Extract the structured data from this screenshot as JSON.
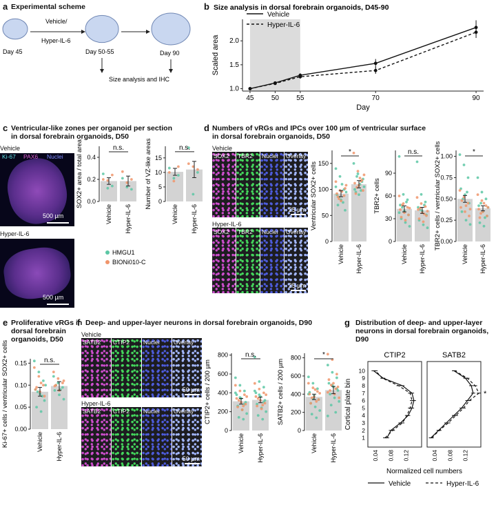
{
  "panel_a": {
    "letter": "a",
    "title": "Experimental scheme",
    "days": [
      "Day 45",
      "Day 50-55",
      "Day 90"
    ],
    "treatment": [
      "Vehicle/",
      "Hyper-IL-6"
    ],
    "analysis": "Size analysis and IHC",
    "colors": {
      "organoid": "#c9d7f0",
      "organoid_edge": "#6f86b3"
    }
  },
  "panel_b": {
    "letter": "b",
    "title": "Size analysis in dorsal forebrain organoids, D45-90"
  },
  "panel_c": {
    "letter": "c",
    "title_lines": [
      "Ventricular-like zones per organoid per section",
      "in dorsal forebrain organoids, D50"
    ],
    "image_labels": {
      "vehicle": "Vehicle",
      "hyper": "Hyper-IL-6",
      "stains": [
        "Ki-67",
        "PAX6",
        "Nuclei"
      ],
      "scale": "500 µm"
    },
    "legend": [
      "HMGU1",
      "BIONi010-C"
    ]
  },
  "panel_d": {
    "letter": "d",
    "title_lines": [
      "Numbers of vRGs and IPCs over 100 µm of ventricular surface",
      "in dorsal forebrain organoids, D50"
    ],
    "image_labels": {
      "vehicle": "Vehicle",
      "hyper": "Hyper-IL-6",
      "channels": [
        "SOX2",
        "TBR2",
        "Nuclei",
        "Overlay"
      ],
      "scale": "25 µm"
    }
  },
  "panel_e": {
    "letter": "e",
    "title_lines": [
      "Proliferative vRGs in",
      "dorsal forebrain",
      "organoids, D50"
    ]
  },
  "panel_f": {
    "letter": "f",
    "title": "Deep- and upper-layer neurons in dorsal forebrain organoids, D90",
    "image_labels": {
      "vehicle": "Vehicle",
      "hyper": "Hyper-IL-6",
      "channels": [
        "SATB2",
        "CTIP2",
        "Nuclei",
        "Overlay"
      ],
      "scale": "50 µm"
    }
  },
  "panel_g": {
    "letter": "g",
    "title_lines": [
      "Distribution of deep- and upper-layer",
      "neurons in dorsal forebrain organoids, D90"
    ]
  },
  "colors": {
    "HMGU1": "#5cc7a5",
    "BIONi010-C": "#f0956b",
    "bar": "#d3d3d3"
  },
  "chart_data": [
    {
      "id": "b",
      "type": "line",
      "title": "Size analysis in dorsal forebrain organoids, D45-90",
      "xlabel": "Day",
      "ylabel": "Scaled area",
      "x": [
        45,
        50,
        55,
        70,
        90
      ],
      "xticks": [
        "45",
        "50",
        "55",
        "70",
        "90"
      ],
      "yticks": [
        "1.0",
        "1.5",
        "2.0"
      ],
      "ylim": [
        0.95,
        2.45
      ],
      "shaded_x": [
        45,
        55
      ],
      "legend_position": "top-left",
      "series": [
        {
          "name": "Vehicle",
          "line": "solid",
          "values": [
            1.0,
            1.12,
            1.28,
            1.53,
            2.28
          ],
          "err": [
            0.02,
            0.03,
            0.04,
            0.09,
            0.15
          ]
        },
        {
          "name": "Hyper-IL-6",
          "line": "dashed",
          "values": [
            1.0,
            1.11,
            1.25,
            1.38,
            2.18
          ],
          "err": [
            0.02,
            0.03,
            0.04,
            0.07,
            0.12
          ]
        }
      ]
    },
    {
      "id": "c1",
      "type": "bar",
      "categories": [
        "Vehicle",
        "Hyper-IL-6"
      ],
      "values": [
        0.185,
        0.185
      ],
      "err": [
        0.03,
        0.045
      ],
      "ylabel": "SOX2+ area / total area",
      "ylim": [
        0,
        0.5
      ],
      "yticks": [
        "0.0",
        "0.2",
        "0.4"
      ],
      "significance": "n.s.",
      "points": {
        "HMGU1": [
          [
            0.25,
            0.12,
            0.14
          ],
          [
            0.21,
            0.13,
            0.11
          ]
        ],
        "BIONi010-C": [
          [
            0.2,
            0.19,
            0.24
          ],
          [
            0.27,
            0.17,
            0.2
          ]
        ]
      }
    },
    {
      "id": "c2",
      "type": "bar",
      "categories": [
        "Vehicle",
        "Hyper-IL-6"
      ],
      "values": [
        10.2,
        11.0
      ],
      "err": [
        1.2,
        2.8
      ],
      "ylabel": "Number of VZ-like areas",
      "ylim": [
        0,
        19
      ],
      "yticks": [
        "0",
        "5",
        "10",
        "15"
      ],
      "significance": "n.s.",
      "points": {
        "HMGU1": [
          [
            11.5,
            8,
            9
          ],
          [
            18.5,
            2.5,
            10
          ]
        ],
        "BIONi010-C": [
          [
            10,
            7,
            12
          ],
          [
            13,
            12,
            11
          ]
        ]
      }
    },
    {
      "id": "d1",
      "type": "bar",
      "categories": [
        "Vehicle",
        "Hyper-IL-6"
      ],
      "values": [
        92,
        110
      ],
      "err": [
        6,
        7
      ],
      "ylabel": "Ventricular SOX2+ cells",
      "ylim": [
        0,
        175
      ],
      "yticks": [
        "0",
        "50",
        "100",
        "150"
      ],
      "significance": "*",
      "points": {
        "HMGU1": [
          [
            140,
            125,
            100,
            90,
            80,
            60,
            70,
            110,
            95,
            85,
            75,
            105
          ],
          [
            150,
            130,
            115,
            100,
            90,
            120,
            95,
            110,
            105,
            125,
            98
          ]
        ],
        "BIONi010-C": [
          [
            115,
            98,
            88,
            92,
            78,
            102,
            86,
            96,
            108,
            82
          ],
          [
            170,
            135,
            118,
            112,
            108,
            98,
            92,
            122,
            128,
            104,
            116
          ]
        ]
      }
    },
    {
      "id": "d2",
      "type": "bar",
      "categories": [
        "Vehicle",
        "Hyper-IL-6"
      ],
      "values": [
        43,
        41
      ],
      "err": [
        4,
        4
      ],
      "ylabel": "TBR2+ cells",
      "ylim": [
        0,
        120
      ],
      "yticks": [
        "0",
        "30",
        "60",
        "90"
      ],
      "significance": "n.s.",
      "points": {
        "HMGU1": [
          [
            112,
            62,
            55,
            48,
            40,
            35,
            30,
            25,
            20,
            45,
            52,
            38
          ],
          [
            105,
            62,
            52,
            45,
            40,
            35,
            28,
            22,
            18,
            42,
            48
          ]
        ],
        "BIONi010-C": [
          [
            60,
            50,
            45,
            42,
            38,
            35,
            32,
            28,
            44,
            48
          ],
          [
            58,
            50,
            46,
            42,
            38,
            34,
            30,
            26,
            40,
            44,
            36
          ]
        ]
      }
    },
    {
      "id": "d3",
      "type": "bar",
      "categories": [
        "Vehicle",
        "Hyper-IL-6"
      ],
      "values": [
        0.5,
        0.39
      ],
      "err": [
        0.04,
        0.03
      ],
      "ylabel": "TBR2+ cells / ventricular SOX2+ cells",
      "ylim": [
        0,
        1.07
      ],
      "yticks": [
        "0.00",
        "0.25",
        "0.50",
        "0.75",
        "1.00"
      ],
      "significance": "*",
      "points": {
        "HMGU1": [
          [
            1.02,
            0.9,
            0.75,
            0.62,
            0.55,
            0.45,
            0.35,
            0.25,
            0.2,
            0.5,
            0.58
          ],
          [
            0.75,
            0.58,
            0.5,
            0.42,
            0.35,
            0.3,
            0.22,
            0.18,
            0.4,
            0.45,
            0.28
          ]
        ],
        "BIONi010-C": [
          [
            0.6,
            0.52,
            0.45,
            0.4,
            0.35,
            0.3,
            0.48,
            0.42,
            0.38
          ],
          [
            0.55,
            0.48,
            0.42,
            0.38,
            0.35,
            0.3,
            0.28,
            0.45,
            0.4,
            0.33
          ]
        ]
      }
    },
    {
      "id": "e1",
      "type": "bar",
      "categories": [
        "Vehicle",
        "Hyper-IL-6"
      ],
      "values": [
        0.085,
        0.098
      ],
      "err": [
        0.01,
        0.01
      ],
      "ylabel": "Ki-67+ cells / ventricular SOX2+ cells",
      "ylim": [
        0,
        0.16
      ],
      "yticks": [
        "0.00",
        "0.05",
        "0.10",
        "0.15"
      ],
      "significance": "n.s.",
      "points": {
        "HMGU1": [
          [
            0.155,
            0.13,
            0.11,
            0.09,
            0.08,
            0.065,
            0.05,
            0.04,
            0.1,
            0.085,
            0.075
          ],
          [
            0.12,
            0.105,
            0.095,
            0.088,
            0.078,
            0.068,
            0.1,
            0.09
          ]
        ],
        "BIONi010-C": [
          [
            0.14,
            0.12,
            0.1,
            0.09,
            0.085,
            0.075,
            0.095,
            0.105
          ],
          [
            0.13,
            0.115,
            0.105,
            0.098,
            0.088,
            0.11,
            0.1
          ]
        ]
      }
    },
    {
      "id": "f1",
      "type": "bar",
      "categories": [
        "Vehicle",
        "Hyper-IL-6"
      ],
      "values": [
        310,
        325
      ],
      "err": [
        30,
        30
      ],
      "ylabel": "CTIP2+ cells / 200 µm",
      "ylim": [
        0,
        820
      ],
      "yticks": [
        "0",
        "200",
        "400",
        "600",
        "800"
      ],
      "significance": "n.s.",
      "points": {
        "HMGU1": [
          [
            560,
            480,
            420,
            380,
            340,
            300,
            260,
            220,
            180,
            140,
            120,
            400,
            350,
            280
          ],
          [
            780,
            520,
            460,
            400,
            360,
            320,
            280,
            240,
            200,
            160,
            120,
            420,
            380,
            300
          ]
        ],
        "BIONi010-C": [
          [
            480,
            420,
            380,
            340,
            300,
            280,
            250,
            220,
            360,
            320,
            260
          ],
          [
            500,
            440,
            400,
            360,
            320,
            290,
            260,
            230,
            380,
            340,
            270
          ]
        ]
      }
    },
    {
      "id": "f2",
      "type": "bar",
      "categories": [
        "Vehicle",
        "Hyper-IL-6"
      ],
      "values": [
        370,
        445
      ],
      "err": [
        30,
        40
      ],
      "ylabel": "SATB2+ cells / 200 µm",
      "ylim": [
        0,
        850
      ],
      "yticks": [
        "0",
        "200",
        "400",
        "600",
        "800"
      ],
      "significance": "*",
      "points": {
        "HMGU1": [
          [
            590,
            520,
            460,
            420,
            380,
            340,
            300,
            260,
            220,
            180,
            140,
            400,
            350
          ],
          [
            720,
            640,
            580,
            520,
            480,
            440,
            400,
            360,
            320,
            280,
            200,
            160,
            500,
            460
          ]
        ],
        "BIONi010-C": [
          [
            520,
            470,
            430,
            400,
            370,
            340,
            300,
            450,
            410,
            360,
            320
          ],
          [
            840,
            780,
            620,
            560,
            520,
            480,
            440,
            400,
            360,
            500,
            460,
            420
          ]
        ]
      }
    },
    {
      "id": "g",
      "type": "line",
      "xlabel": "Normalized cell numbers",
      "ylabel": "Cortical plate bin",
      "yticks": [
        "1",
        "2",
        "3",
        "4",
        "5",
        "6",
        "7",
        "8",
        "9",
        "10"
      ],
      "xticks": [
        "0.04",
        "0.08",
        "0.12"
      ],
      "xlim": [
        0.02,
        0.16
      ],
      "panels": [
        "CTIP2",
        "SATB2"
      ],
      "legend": [
        "Vehicle",
        "Hyper-IL-6"
      ],
      "annotation": "*",
      "series": [
        {
          "panel": "CTIP2",
          "name": "Vehicle",
          "line": "solid",
          "values": [
            0.07,
            0.08,
            0.105,
            0.125,
            0.135,
            0.14,
            0.135,
            0.11,
            0.06,
            0.035
          ]
        },
        {
          "panel": "CTIP2",
          "name": "Hyper-IL-6",
          "line": "dashed",
          "values": [
            0.065,
            0.085,
            0.11,
            0.122,
            0.13,
            0.135,
            0.13,
            0.1,
            0.058,
            0.04
          ]
        },
        {
          "panel": "SATB2",
          "name": "Vehicle",
          "line": "solid",
          "values": [
            0.03,
            0.05,
            0.07,
            0.09,
            0.11,
            0.125,
            0.14,
            0.135,
            0.12,
            0.09
          ]
        },
        {
          "panel": "SATB2",
          "name": "Hyper-IL-6",
          "line": "dashed",
          "values": [
            0.032,
            0.052,
            0.075,
            0.095,
            0.115,
            0.13,
            0.155,
            0.145,
            0.125,
            0.092
          ]
        }
      ]
    }
  ]
}
